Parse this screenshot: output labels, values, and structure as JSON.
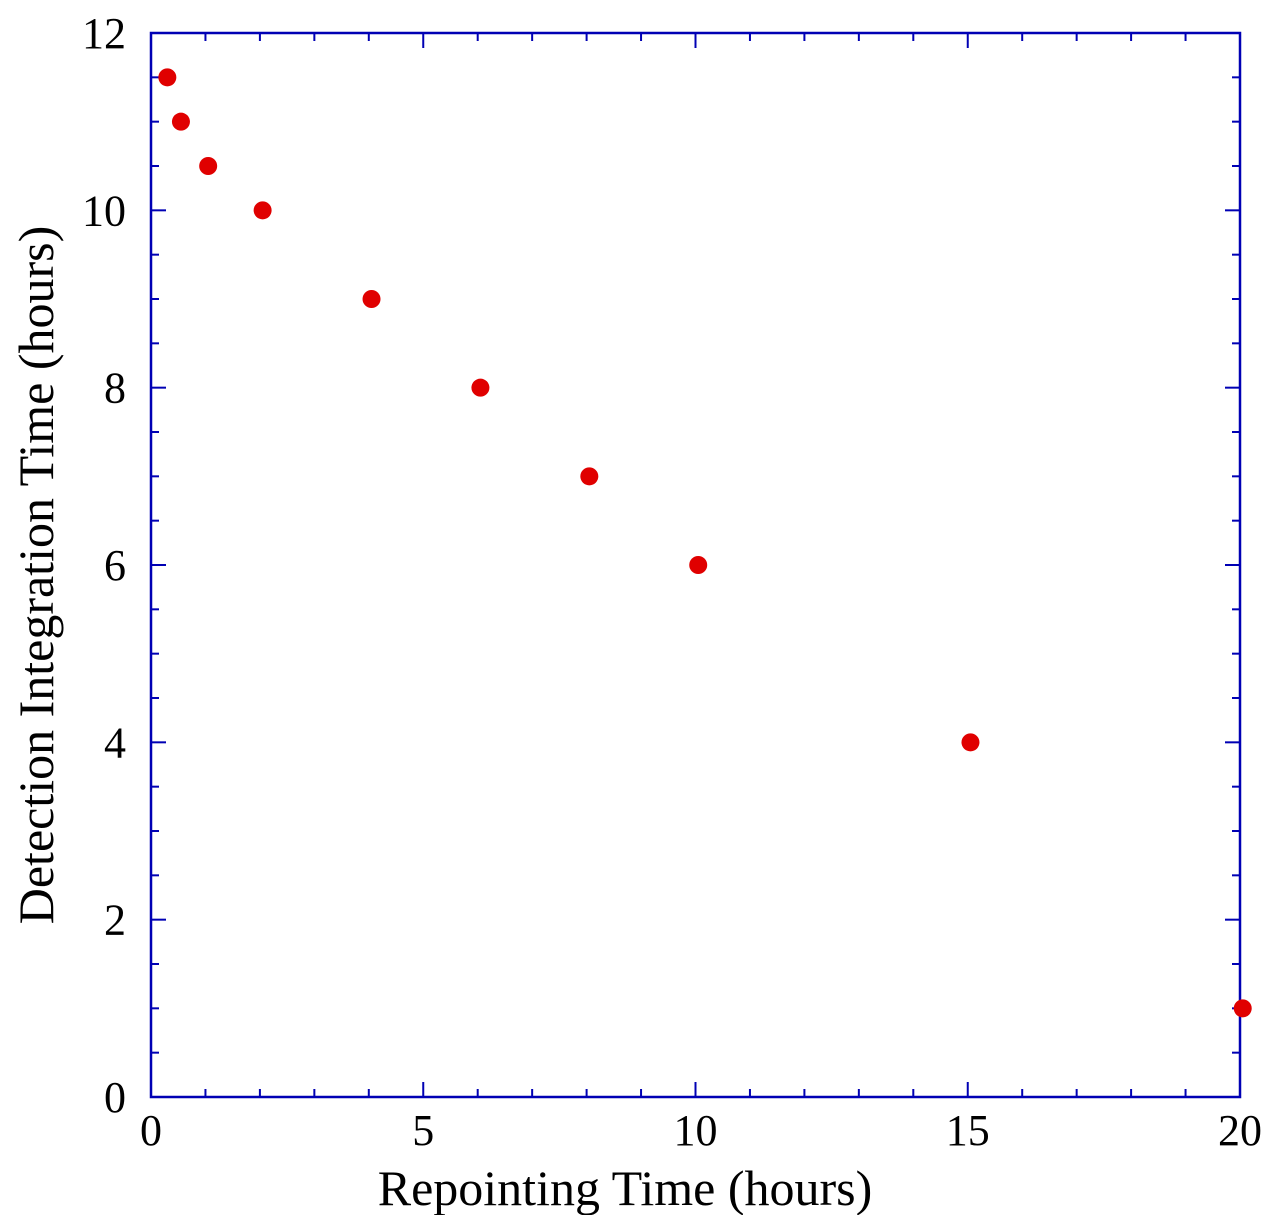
{
  "chart_data": {
    "type": "scatter",
    "xlabel": "Repointing Time (hours)",
    "ylabel": "Detection Integration Time (hours)",
    "xlim": [
      0,
      20
    ],
    "ylim": [
      0,
      12
    ],
    "x_ticks": [
      0,
      5,
      10,
      15,
      20
    ],
    "y_ticks": [
      0,
      2,
      4,
      6,
      8,
      10,
      12
    ],
    "grid": false,
    "axis_color": "#0000b4",
    "marker_color": "#e00000",
    "points": [
      {
        "x": 0.3,
        "y": 11.5
      },
      {
        "x": 0.55,
        "y": 11.0
      },
      {
        "x": 1.05,
        "y": 10.5
      },
      {
        "x": 2.05,
        "y": 10.0
      },
      {
        "x": 4.05,
        "y": 9.0
      },
      {
        "x": 6.05,
        "y": 8.0
      },
      {
        "x": 8.05,
        "y": 7.0
      },
      {
        "x": 10.05,
        "y": 6.0
      },
      {
        "x": 15.05,
        "y": 4.0
      },
      {
        "x": 20.05,
        "y": 1.0
      }
    ]
  }
}
